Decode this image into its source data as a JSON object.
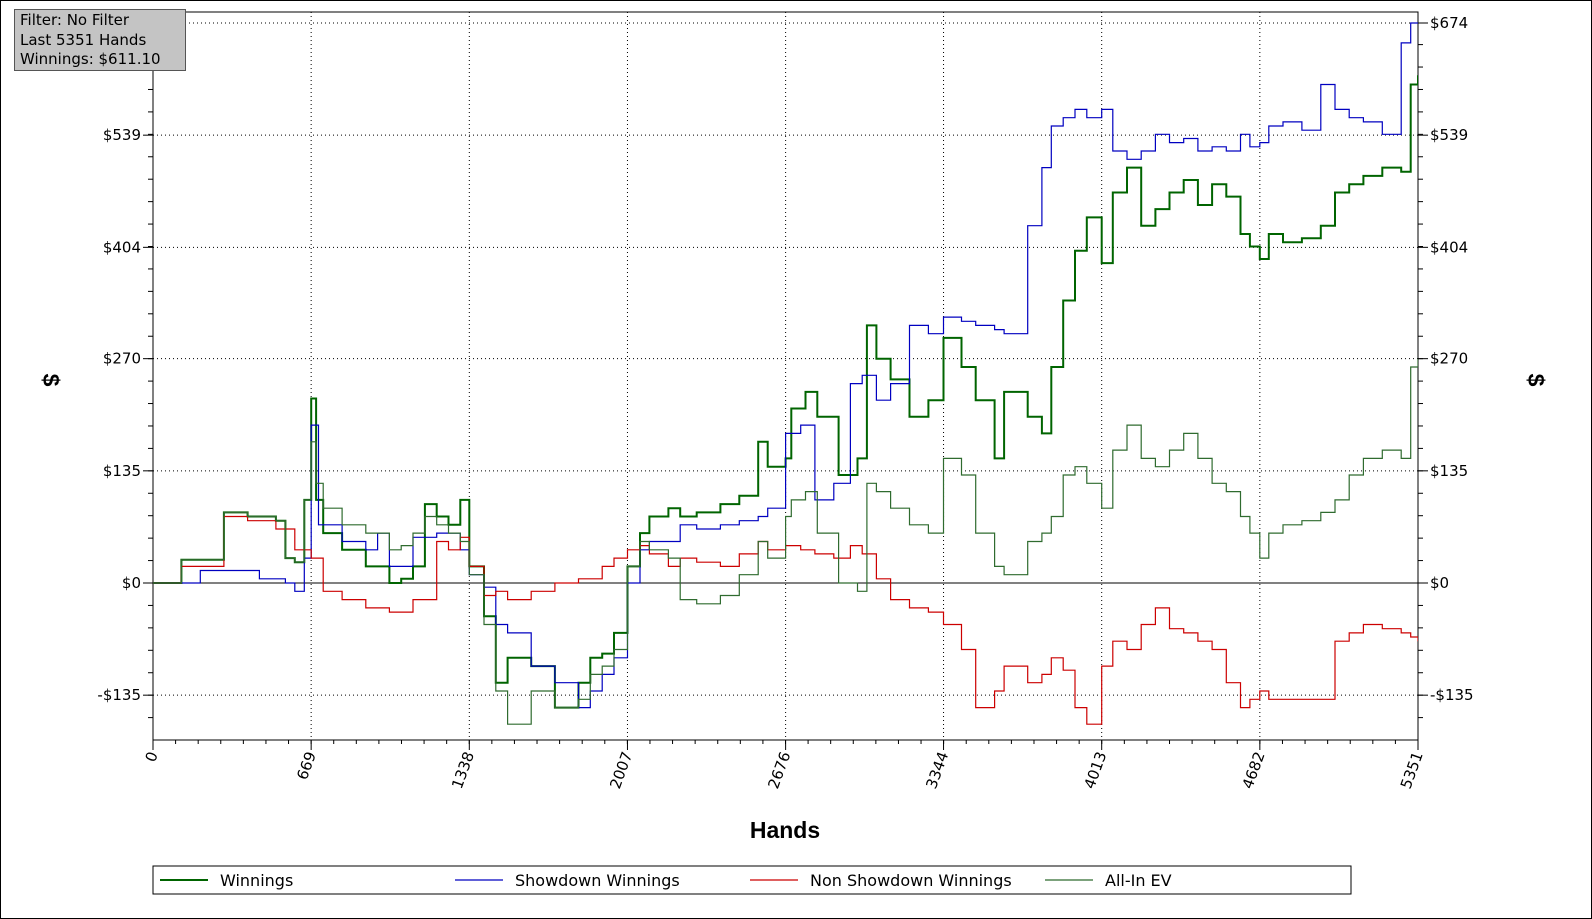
{
  "info_box": {
    "filter": "Filter: No Filter",
    "hands": "Last  5351 Hands",
    "winnings": "Winnings: $611.10"
  },
  "chart_data": {
    "type": "line",
    "title": "",
    "xlabel": "Hands",
    "ylabel_left": "$",
    "ylabel_right": "$",
    "xlim": [
      0,
      5351
    ],
    "ylim": [
      -190,
      674
    ],
    "x_ticks": [
      0,
      669,
      1338,
      2007,
      2676,
      3344,
      4013,
      4682,
      5351
    ],
    "x_tick_labels": [
      "0",
      "669",
      "1338",
      "2007",
      "2676",
      "3344",
      "4013",
      "4682",
      "5351"
    ],
    "y_ticks": [
      -135,
      0,
      135,
      270,
      404,
      539,
      674
    ],
    "y_tick_labels": [
      "-$135",
      "$0",
      "$135",
      "$270",
      "$404",
      "$539",
      "$674"
    ],
    "grid": "dotted",
    "legend_position": "bottom",
    "series": [
      {
        "name": "Winnings",
        "color": "#006400",
        "x": [
          0,
          120,
          300,
          400,
          520,
          560,
          600,
          640,
          669,
          690,
          720,
          800,
          900,
          1000,
          1050,
          1100,
          1150,
          1200,
          1250,
          1300,
          1338,
          1400,
          1450,
          1500,
          1600,
          1700,
          1800,
          1850,
          1900,
          1950,
          2007,
          2060,
          2100,
          2180,
          2230,
          2300,
          2400,
          2480,
          2560,
          2600,
          2676,
          2700,
          2760,
          2810,
          2900,
          2980,
          3020,
          3060,
          3120,
          3200,
          3280,
          3344,
          3420,
          3480,
          3560,
          3600,
          3700,
          3760,
          3800,
          3850,
          3900,
          3950,
          4013,
          4060,
          4120,
          4180,
          4240,
          4300,
          4360,
          4420,
          4480,
          4540,
          4600,
          4640,
          4682,
          4720,
          4780,
          4860,
          4940,
          5000,
          5060,
          5120,
          5200,
          5280,
          5320,
          5351
        ],
        "values": [
          0,
          28,
          85,
          80,
          75,
          30,
          25,
          100,
          222,
          100,
          60,
          40,
          20,
          0,
          5,
          20,
          95,
          80,
          70,
          100,
          20,
          -40,
          -120,
          -90,
          -100,
          -150,
          -120,
          -90,
          -85,
          -60,
          20,
          60,
          80,
          90,
          80,
          85,
          95,
          105,
          170,
          140,
          150,
          210,
          230,
          200,
          130,
          150,
          310,
          270,
          245,
          200,
          220,
          295,
          260,
          220,
          150,
          230,
          200,
          180,
          260,
          340,
          400,
          440,
          385,
          470,
          500,
          430,
          450,
          470,
          485,
          455,
          480,
          465,
          420,
          405,
          390,
          420,
          410,
          415,
          430,
          470,
          480,
          490,
          500,
          495,
          600,
          611.1
        ]
      },
      {
        "name": "Showdown Winnings",
        "color": "#0000c0",
        "x": [
          0,
          200,
          450,
          560,
          600,
          640,
          669,
          700,
          800,
          900,
          950,
          1000,
          1100,
          1200,
          1300,
          1338,
          1400,
          1450,
          1500,
          1600,
          1700,
          1800,
          1850,
          1900,
          1950,
          2007,
          2060,
          2100,
          2180,
          2230,
          2300,
          2400,
          2480,
          2560,
          2600,
          2676,
          2740,
          2800,
          2880,
          2950,
          3000,
          3060,
          3120,
          3200,
          3280,
          3344,
          3420,
          3480,
          3560,
          3600,
          3700,
          3760,
          3800,
          3850,
          3900,
          3950,
          4013,
          4060,
          4120,
          4180,
          4240,
          4300,
          4360,
          4420,
          4480,
          4540,
          4600,
          4640,
          4682,
          4720,
          4780,
          4860,
          4940,
          5000,
          5060,
          5120,
          5200,
          5280,
          5320,
          5351
        ],
        "values": [
          0,
          15,
          5,
          0,
          -10,
          30,
          190,
          70,
          50,
          40,
          60,
          20,
          55,
          60,
          40,
          10,
          -5,
          -50,
          -60,
          -100,
          -120,
          -150,
          -130,
          -110,
          -90,
          0,
          40,
          50,
          50,
          70,
          65,
          70,
          75,
          80,
          90,
          180,
          190,
          100,
          120,
          240,
          250,
          220,
          240,
          310,
          300,
          320,
          315,
          310,
          305,
          300,
          430,
          500,
          550,
          560,
          570,
          560,
          570,
          520,
          510,
          520,
          540,
          530,
          535,
          520,
          525,
          520,
          540,
          525,
          530,
          550,
          555,
          545,
          600,
          570,
          560,
          555,
          540,
          650,
          674,
          674
        ]
      },
      {
        "name": "Non Showdown Winnings",
        "color": "#cc0000",
        "x": [
          0,
          120,
          300,
          400,
          520,
          600,
          669,
          720,
          800,
          900,
          1000,
          1100,
          1200,
          1250,
          1300,
          1338,
          1400,
          1450,
          1500,
          1600,
          1700,
          1800,
          1900,
          1950,
          2007,
          2060,
          2100,
          2180,
          2230,
          2300,
          2400,
          2480,
          2560,
          2600,
          2676,
          2740,
          2800,
          2880,
          2950,
          3000,
          3060,
          3120,
          3200,
          3280,
          3344,
          3420,
          3480,
          3560,
          3600,
          3700,
          3760,
          3800,
          3850,
          3900,
          3950,
          4013,
          4060,
          4120,
          4180,
          4240,
          4300,
          4360,
          4420,
          4480,
          4540,
          4600,
          4640,
          4682,
          4720,
          4780,
          4860,
          4940,
          5000,
          5060,
          5120,
          5200,
          5280,
          5320,
          5351
        ],
        "values": [
          0,
          20,
          80,
          75,
          65,
          40,
          30,
          -10,
          -20,
          -30,
          -35,
          -20,
          50,
          40,
          55,
          20,
          -15,
          -10,
          -20,
          -10,
          0,
          5,
          20,
          30,
          40,
          45,
          35,
          20,
          30,
          25,
          20,
          35,
          50,
          40,
          45,
          40,
          35,
          30,
          45,
          35,
          5,
          -20,
          -30,
          -35,
          -50,
          -80,
          -150,
          -130,
          -100,
          -120,
          -110,
          -90,
          -105,
          -150,
          -170,
          -100,
          -70,
          -80,
          -50,
          -30,
          -55,
          -60,
          -70,
          -80,
          -120,
          -150,
          -140,
          -130,
          -140,
          -140,
          -140,
          -140,
          -70,
          -60,
          -50,
          -55,
          -60,
          -65,
          -70
        ]
      },
      {
        "name": "All-In EV",
        "color": "#2f6b2f",
        "x": [
          0,
          120,
          300,
          400,
          520,
          560,
          600,
          640,
          669,
          690,
          720,
          800,
          900,
          1000,
          1050,
          1100,
          1150,
          1200,
          1250,
          1300,
          1338,
          1400,
          1450,
          1500,
          1600,
          1700,
          1800,
          1850,
          1900,
          1950,
          2007,
          2060,
          2100,
          2180,
          2230,
          2300,
          2400,
          2480,
          2560,
          2600,
          2676,
          2700,
          2760,
          2810,
          2900,
          2980,
          3020,
          3060,
          3120,
          3200,
          3280,
          3344,
          3420,
          3480,
          3560,
          3600,
          3700,
          3760,
          3800,
          3850,
          3900,
          3950,
          4013,
          4060,
          4120,
          4180,
          4240,
          4300,
          4360,
          4420,
          4480,
          4540,
          4600,
          4640,
          4682,
          4720,
          4780,
          4860,
          4940,
          5000,
          5060,
          5120,
          5200,
          5280,
          5320,
          5351
        ],
        "values": [
          0,
          28,
          85,
          80,
          75,
          30,
          25,
          100,
          170,
          120,
          90,
          70,
          60,
          40,
          45,
          60,
          80,
          70,
          60,
          50,
          10,
          -50,
          -130,
          -170,
          -130,
          -150,
          -140,
          -110,
          -100,
          -80,
          20,
          50,
          40,
          30,
          -20,
          -25,
          -15,
          10,
          50,
          30,
          80,
          100,
          110,
          60,
          0,
          -10,
          120,
          110,
          90,
          70,
          60,
          150,
          130,
          60,
          20,
          10,
          50,
          60,
          80,
          130,
          140,
          120,
          90,
          160,
          190,
          150,
          140,
          160,
          180,
          150,
          120,
          110,
          80,
          60,
          30,
          60,
          70,
          75,
          85,
          100,
          130,
          150,
          160,
          150,
          260,
          270
        ]
      }
    ]
  }
}
